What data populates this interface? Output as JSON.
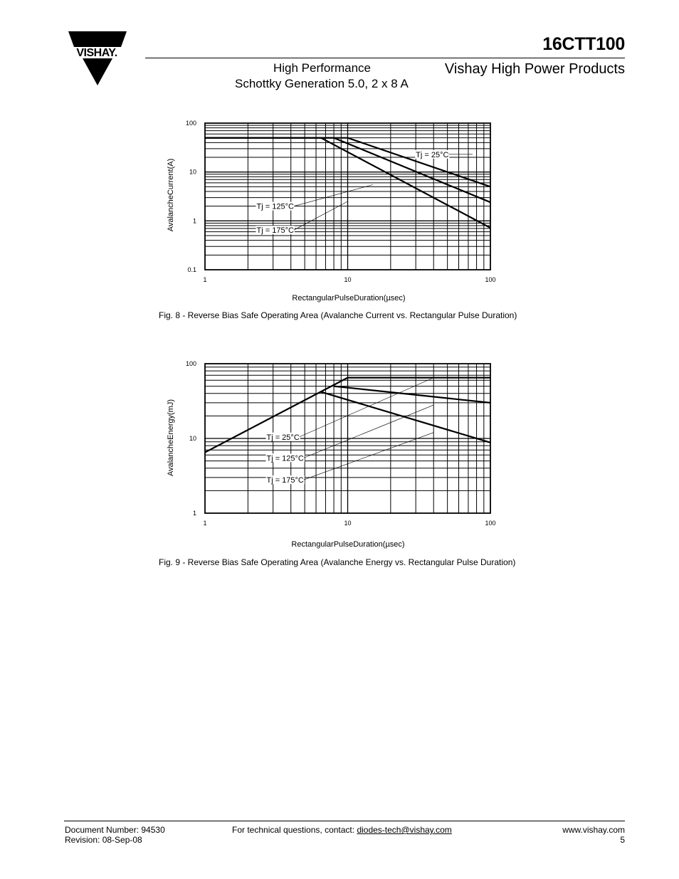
{
  "header": {
    "part_number": "16CTT100",
    "subtitle_line1": "High Performance",
    "subtitle_line2": "Schottky Generation 5.0, 2 x 8 A",
    "division": "Vishay High Power Products",
    "logo_text": "VISHAY."
  },
  "chart_data": [
    {
      "type": "line",
      "x_scale": "log",
      "y_scale": "log",
      "xlim": [
        1,
        100
      ],
      "ylim": [
        0.1,
        100
      ],
      "xticks": [
        "1",
        "10",
        "100"
      ],
      "yticks": [
        "0.1",
        "1",
        "10",
        "100"
      ],
      "xlabel": "RectangularPulseDuration(µsec)",
      "ylabel": "AvalancheCurrent(A)",
      "grid": true,
      "series": [
        {
          "name": "Tj = 25°C",
          "points": [
            [
              1,
              50
            ],
            [
              10,
              50
            ],
            [
              100,
              5
            ]
          ]
        },
        {
          "name": "Tj = 125°C",
          "points": [
            [
              1,
              50
            ],
            [
              8,
              50
            ],
            [
              100,
              2.4
            ]
          ]
        },
        {
          "name": "Tj = 175°C",
          "points": [
            [
              1,
              50
            ],
            [
              6.5,
              50
            ],
            [
              100,
              0.72
            ]
          ]
        }
      ],
      "annotations": [
        {
          "text": "Tj = 25°C",
          "x": 30,
          "y": 23,
          "leader_to": [
            75,
            23
          ]
        },
        {
          "text": "Tj = 125°C",
          "x": 2.3,
          "y": 2.0,
          "leader_to": [
            15,
            5.5
          ]
        },
        {
          "text": "Tj = 175°C",
          "x": 2.3,
          "y": 0.65,
          "leader_to": [
            10,
            2.5
          ]
        }
      ],
      "caption": "Fig. 8 - Reverse Bias Safe Operating Area (Avalanche Current vs. Rectangular Pulse Duration)"
    },
    {
      "type": "line",
      "x_scale": "log",
      "y_scale": "log",
      "xlim": [
        1,
        100
      ],
      "ylim": [
        1,
        100
      ],
      "xticks": [
        "1",
        "10",
        "100"
      ],
      "yticks": [
        "1",
        "10",
        "100"
      ],
      "xlabel": "RectangularPulseDuration(µsec)",
      "ylabel": "AvalancheEnergy(mJ)",
      "grid": true,
      "series": [
        {
          "name": "Tj = 25°C",
          "points": [
            [
              1,
              6.5
            ],
            [
              10,
              65
            ],
            [
              100,
              65
            ]
          ]
        },
        {
          "name": "Tj = 125°C",
          "points": [
            [
              8,
              50
            ],
            [
              100,
              30
            ]
          ]
        },
        {
          "name": "Tj = 175°C",
          "points": [
            [
              6.5,
              42
            ],
            [
              100,
              8.8
            ]
          ]
        }
      ],
      "annotations": [
        {
          "text": "Tj = 25°C",
          "x": 2.7,
          "y": 10.5,
          "leader_to": [
            40,
            65
          ]
        },
        {
          "text": "Tj = 125°C",
          "x": 2.7,
          "y": 5.5,
          "leader_to": [
            40,
            28
          ]
        },
        {
          "text": "Tj = 175°C",
          "x": 2.7,
          "y": 2.8,
          "leader_to": [
            40,
            12
          ]
        }
      ],
      "caption": "Fig. 9 - Reverse Bias Safe Operating Area (Avalanche Energy vs. Rectangular Pulse Duration)"
    }
  ],
  "footer": {
    "doc_number": "Document Number: 94530",
    "revision": "Revision: 08-Sep-08",
    "contact_prefix": "For technical questions, contact: ",
    "contact_email": "diodes-tech@vishay.com",
    "website": "www.vishay.com",
    "page_number": "5"
  },
  "colors": {
    "ink": "#000000",
    "background": "#ffffff"
  }
}
